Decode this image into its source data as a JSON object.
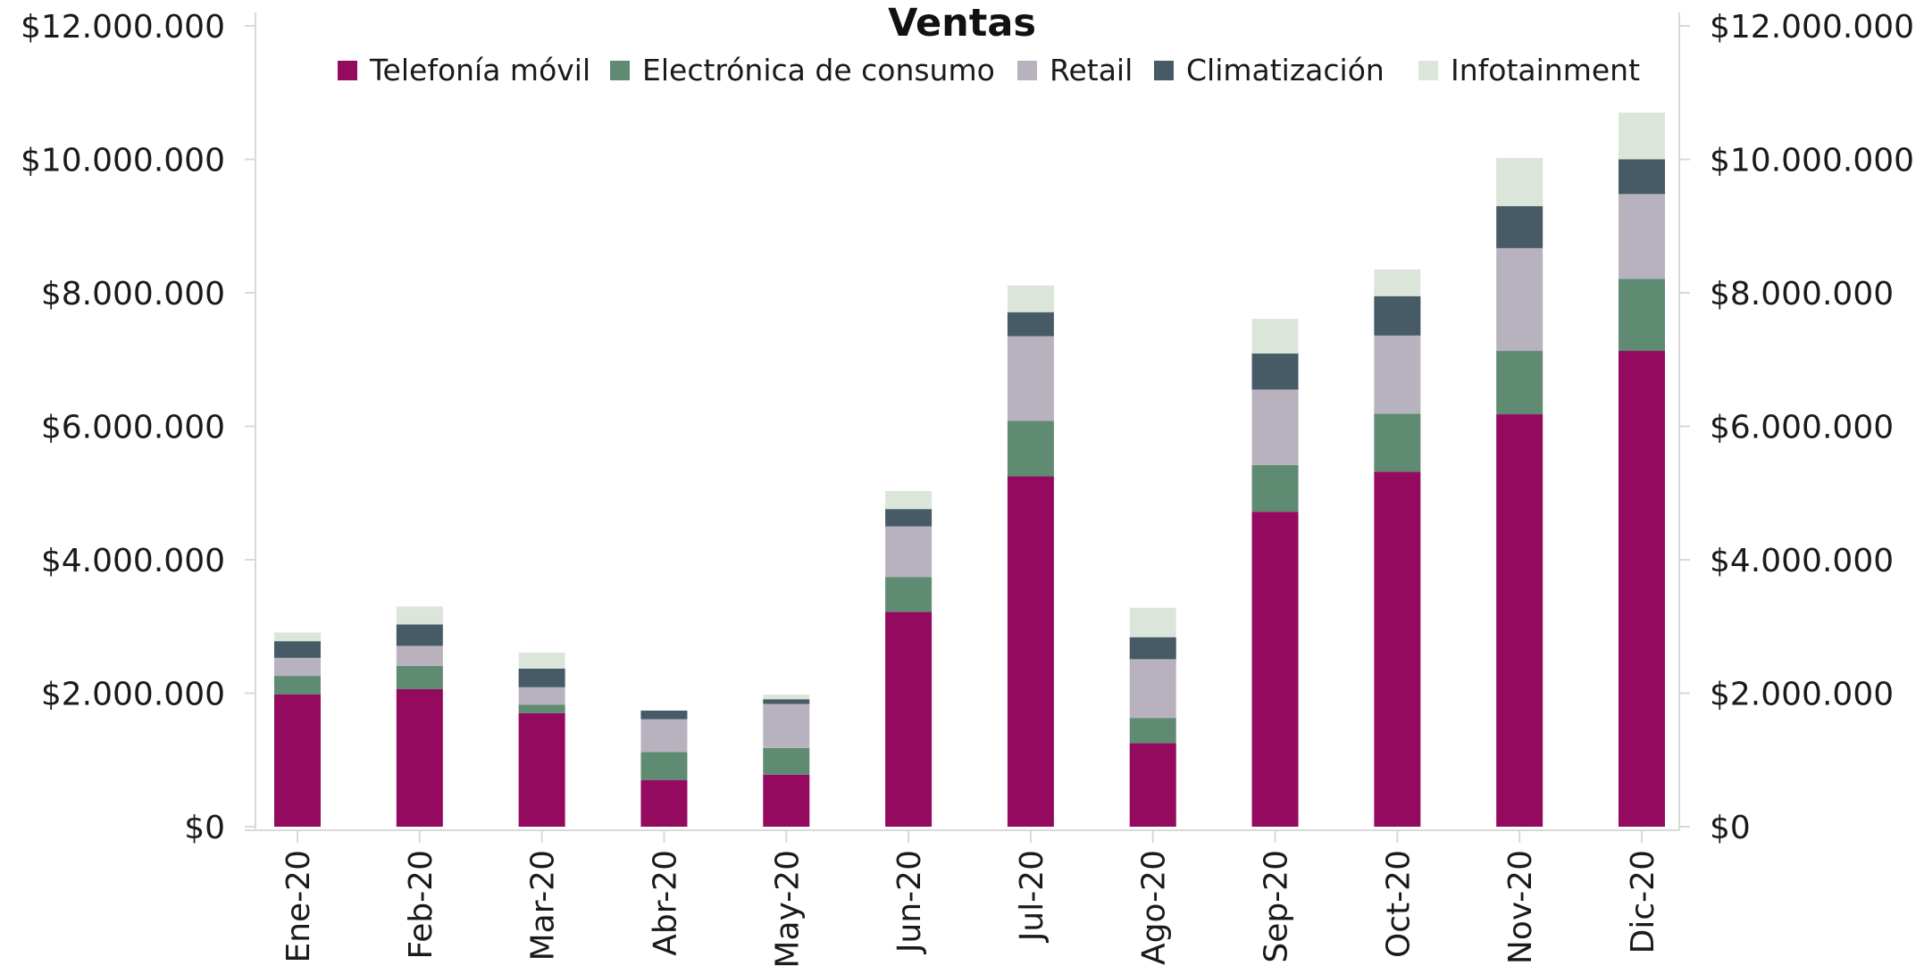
{
  "chart_data": {
    "type": "bar",
    "stacked": true,
    "title": "Ventas",
    "categories": [
      "Ene-20",
      "Feb-20",
      "Mar-20",
      "Abr-20",
      "May-20",
      "Jun-20",
      "Jul-20",
      "Ago-20",
      "Sep-20",
      "Oct-20",
      "Nov-20",
      "Dic-20"
    ],
    "series": [
      {
        "name": "Telefonía móvil",
        "color": "#930a5f",
        "values": [
          1980000,
          2060000,
          1700000,
          700000,
          780000,
          3220000,
          5250000,
          1250000,
          4720000,
          5320000,
          6180000,
          7130000
        ]
      },
      {
        "name": "Electrónica de consumo",
        "color": "#5f8b73",
        "values": [
          280000,
          350000,
          130000,
          420000,
          400000,
          520000,
          830000,
          380000,
          700000,
          870000,
          950000,
          1080000
        ]
      },
      {
        "name": "Retail",
        "color": "#b8b2be",
        "values": [
          270000,
          300000,
          260000,
          490000,
          660000,
          760000,
          1270000,
          880000,
          1130000,
          1170000,
          1540000,
          1270000
        ]
      },
      {
        "name": "Climatización",
        "color": "#465b65",
        "values": [
          250000,
          320000,
          280000,
          130000,
          70000,
          260000,
          360000,
          330000,
          540000,
          590000,
          630000,
          520000
        ]
      },
      {
        "name": "Infotainment",
        "color": "#dbe5da",
        "values": [
          130000,
          270000,
          240000,
          0,
          70000,
          270000,
          400000,
          440000,
          520000,
          400000,
          720000,
          700000
        ]
      }
    ],
    "ylim": [
      0,
      12000000
    ],
    "yticks": [
      "$0",
      "$2.000.000",
      "$4.000.000",
      "$6.000.000",
      "$8.000.000",
      "$10.000.000",
      "$12.000.000"
    ],
    "secondary_yticks": [
      "$0",
      "$2.000.000",
      "$4.000.000",
      "$6.000.000",
      "$8.000.000",
      "$10.000.000",
      "$12.000.000"
    ],
    "legend_position": "top",
    "grid": false
  }
}
